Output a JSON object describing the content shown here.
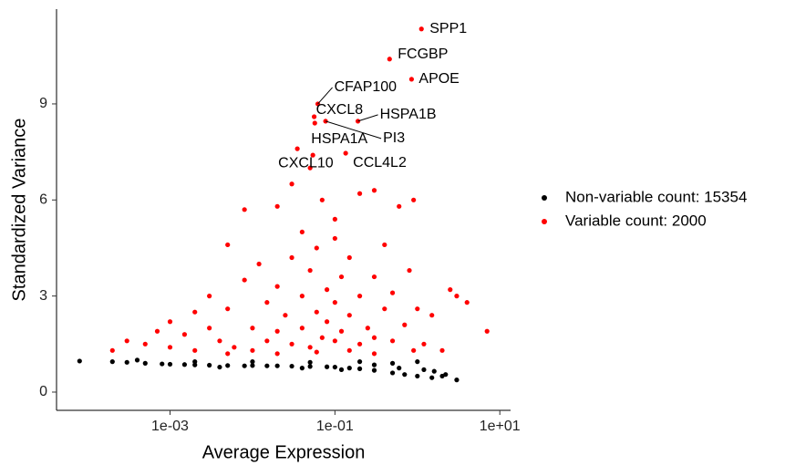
{
  "chart_data": {
    "type": "scatter",
    "xlabel": "Average Expression",
    "ylabel": "Standardized Variance",
    "xlog": true,
    "xlim": [
      4.2e-05,
      13.5
    ],
    "ylim": [
      -0.57,
      11.96
    ],
    "xticks": [
      {
        "value": 0.001,
        "label": "1e-03"
      },
      {
        "value": 0.1,
        "label": "1e-01"
      },
      {
        "value": 10,
        "label": "1e+01"
      }
    ],
    "yticks": [
      0,
      3,
      6,
      9
    ],
    "grid": false,
    "legend": "right",
    "series": [
      {
        "name": "Non-variable count: 15354",
        "color": "#000000",
        "x": [
          8e-05,
          0.0002,
          0.0003,
          0.0005,
          0.0008,
          0.001,
          0.0015,
          0.002,
          0.003,
          0.005,
          0.008,
          0.01,
          0.015,
          0.02,
          0.03,
          0.05,
          0.08,
          0.1,
          0.15,
          0.2,
          0.3,
          0.5,
          0.7,
          1.0,
          1.5,
          2.0,
          3.0,
          0.0004,
          0.002,
          0.01,
          0.05,
          0.2,
          0.5,
          1.0,
          1.2,
          0.3,
          0.004,
          0.04,
          0.12,
          0.6,
          1.6,
          2.2
        ],
        "values": [
          0.97,
          0.95,
          0.93,
          0.9,
          0.88,
          0.87,
          0.86,
          0.85,
          0.84,
          0.83,
          0.82,
          0.83,
          0.82,
          0.82,
          0.81,
          0.8,
          0.79,
          0.78,
          0.75,
          0.73,
          0.68,
          0.6,
          0.55,
          0.5,
          0.45,
          0.5,
          0.38,
          1.0,
          0.95,
          0.95,
          0.93,
          0.95,
          0.9,
          0.95,
          0.7,
          0.85,
          0.78,
          0.75,
          0.7,
          0.75,
          0.65,
          0.55
        ]
      },
      {
        "name": "Variable count: 2000",
        "color": "#ff0000",
        "x": [
          0.0002,
          0.0003,
          0.0005,
          0.0007,
          0.001,
          0.001,
          0.0015,
          0.002,
          0.002,
          0.003,
          0.003,
          0.004,
          0.005,
          0.005,
          0.006,
          0.008,
          0.008,
          0.01,
          0.01,
          0.012,
          0.015,
          0.015,
          0.02,
          0.02,
          0.02,
          0.025,
          0.03,
          0.03,
          0.03,
          0.035,
          0.04,
          0.04,
          0.04,
          0.05,
          0.05,
          0.05,
          0.06,
          0.06,
          0.07,
          0.07,
          0.08,
          0.08,
          0.1,
          0.1,
          0.1,
          0.1,
          0.12,
          0.12,
          0.15,
          0.15,
          0.2,
          0.2,
          0.2,
          0.25,
          0.3,
          0.3,
          0.3,
          0.4,
          0.4,
          0.5,
          0.5,
          0.6,
          0.7,
          0.8,
          0.9,
          1.0,
          1.2,
          1.5,
          2.0,
          2.5,
          3.0,
          4.0,
          7.0,
          0.9,
          0.15,
          0.02,
          0.005,
          0.06,
          0.3
        ],
        "values": [
          1.3,
          1.6,
          1.5,
          1.9,
          1.4,
          2.2,
          1.8,
          2.5,
          1.3,
          2.0,
          3.0,
          1.6,
          2.6,
          4.6,
          1.4,
          3.5,
          5.7,
          2.0,
          1.3,
          4.0,
          2.8,
          1.6,
          3.3,
          5.8,
          1.9,
          2.4,
          4.2,
          6.5,
          1.5,
          7.6,
          3.0,
          2.0,
          5.0,
          1.4,
          3.8,
          7.0,
          2.5,
          4.5,
          1.7,
          6.0,
          3.2,
          2.2,
          1.6,
          4.8,
          5.4,
          2.8,
          3.6,
          1.9,
          2.4,
          4.2,
          1.5,
          3.0,
          6.2,
          2.0,
          3.6,
          1.7,
          6.3,
          2.6,
          4.6,
          1.6,
          3.1,
          5.8,
          2.1,
          3.8,
          6.0,
          2.6,
          1.5,
          2.4,
          1.3,
          3.2,
          3.0,
          2.8,
          1.9,
          1.3,
          1.3,
          1.2,
          1.2,
          1.25,
          1.2
        ]
      }
    ],
    "labels": [
      {
        "text": "SPP1",
        "x": 1.12,
        "y": 11.34
      },
      {
        "text": "FCGBP",
        "x": 0.46,
        "y": 10.4
      },
      {
        "text": "APOE",
        "x": 0.85,
        "y": 9.77
      },
      {
        "text": "CFAP100",
        "x": 0.062,
        "y": 9.0
      },
      {
        "text": "CXCL8",
        "x": 0.056,
        "y": 8.6
      },
      {
        "text": "HSPA1B",
        "x": 0.19,
        "y": 8.46
      },
      {
        "text": "HSPA1A",
        "x": 0.057,
        "y": 8.4
      },
      {
        "text": "PI3",
        "x": 0.077,
        "y": 8.46
      },
      {
        "text": "CXCL10",
        "x": 0.054,
        "y": 7.4
      },
      {
        "text": "CCL4L2",
        "x": 0.135,
        "y": 7.46
      }
    ]
  }
}
